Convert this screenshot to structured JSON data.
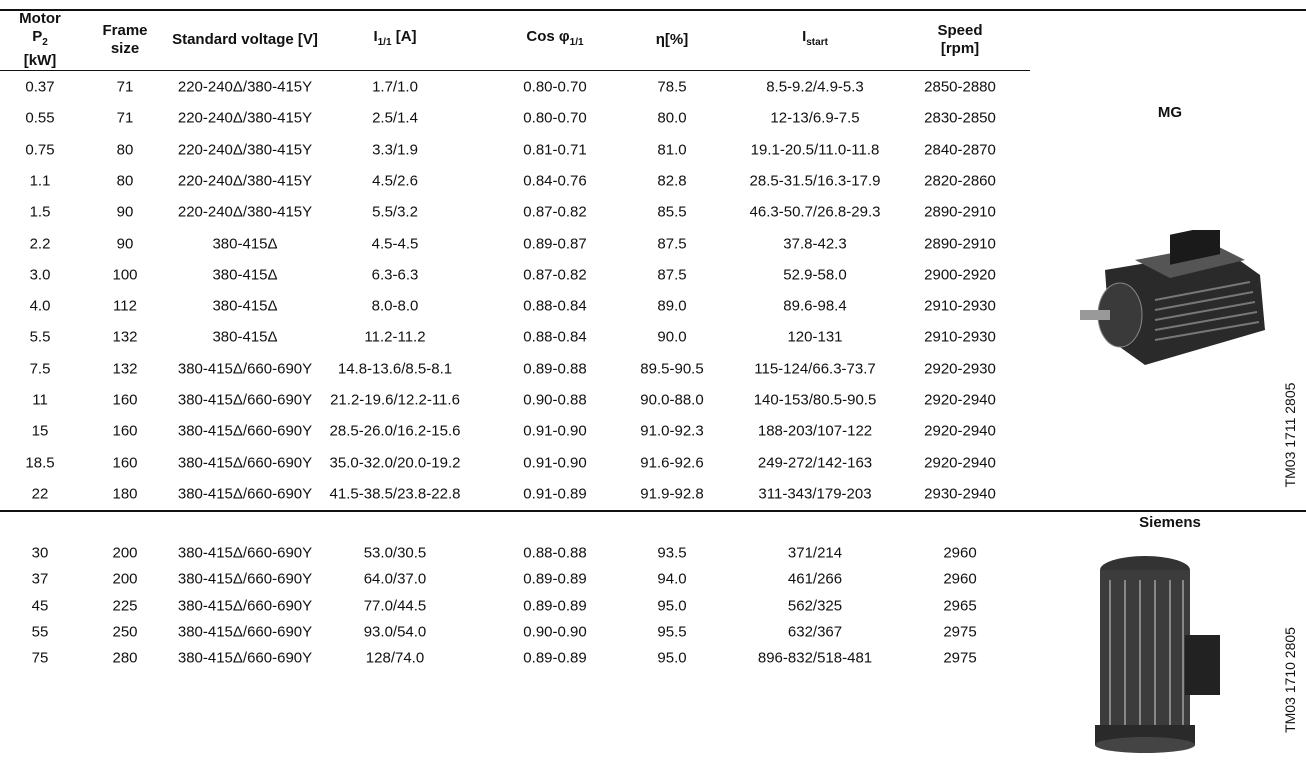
{
  "table": {
    "headers": [
      {
        "text": "Motor",
        "symbol": "P",
        "sub": "2",
        "unit": "[kW]"
      },
      {
        "text": "Frame size"
      },
      {
        "text": "Standard voltage [V]"
      },
      {
        "symbol": "I",
        "sub": "1/1",
        "unit": "[A]"
      },
      {
        "symbol": "Cos φ",
        "sub": "1/1"
      },
      {
        "text": "η[%]"
      },
      {
        "symbol": "I",
        "sub": "start"
      },
      {
        "text": "Speed [rpm]"
      }
    ],
    "mg_rows": [
      [
        "0.37",
        "71",
        "220-240Δ/380-415Y",
        "1.7/1.0",
        "0.80-0.70",
        "78.5",
        "8.5-9.2/4.9-5.3",
        "2850-2880"
      ],
      [
        "0.55",
        "71",
        "220-240Δ/380-415Y",
        "2.5/1.4",
        "0.80-0.70",
        "80.0",
        "12-13/6.9-7.5",
        "2830-2850"
      ],
      [
        "0.75",
        "80",
        "220-240Δ/380-415Y",
        "3.3/1.9",
        "0.81-0.71",
        "81.0",
        "19.1-20.5/11.0-11.8",
        "2840-2870"
      ],
      [
        "1.1",
        "80",
        "220-240Δ/380-415Y",
        "4.5/2.6",
        "0.84-0.76",
        "82.8",
        "28.5-31.5/16.3-17.9",
        "2820-2860"
      ],
      [
        "1.5",
        "90",
        "220-240Δ/380-415Y",
        "5.5/3.2",
        "0.87-0.82",
        "85.5",
        "46.3-50.7/26.8-29.3",
        "2890-2910"
      ],
      [
        "2.2",
        "90",
        "380-415Δ",
        "4.5-4.5",
        "0.89-0.87",
        "87.5",
        "37.8-42.3",
        "2890-2910"
      ],
      [
        "3.0",
        "100",
        "380-415Δ",
        "6.3-6.3",
        "0.87-0.82",
        "87.5",
        "52.9-58.0",
        "2900-2920"
      ],
      [
        "4.0",
        "112",
        "380-415Δ",
        "8.0-8.0",
        "0.88-0.84",
        "89.0",
        "89.6-98.4",
        "2910-2930"
      ],
      [
        "5.5",
        "132",
        "380-415Δ",
        "11.2-11.2",
        "0.88-0.84",
        "90.0",
        "120-131",
        "2910-2930"
      ],
      [
        "7.5",
        "132",
        "380-415Δ/660-690Y",
        "14.8-13.6/8.5-8.1",
        "0.89-0.88",
        "89.5-90.5",
        "115-124/66.3-73.7",
        "2920-2930"
      ],
      [
        "11",
        "160",
        "380-415Δ/660-690Y",
        "21.2-19.6/12.2-11.6",
        "0.90-0.88",
        "90.0-88.0",
        "140-153/80.5-90.5",
        "2920-2940"
      ],
      [
        "15",
        "160",
        "380-415Δ/660-690Y",
        "28.5-26.0/16.2-15.6",
        "0.91-0.90",
        "91.0-92.3",
        "188-203/107-122",
        "2920-2940"
      ],
      [
        "18.5",
        "160",
        "380-415Δ/660-690Y",
        "35.0-32.0/20.0-19.2",
        "0.91-0.90",
        "91.6-92.6",
        "249-272/142-163",
        "2920-2940"
      ],
      [
        "22",
        "180",
        "380-415Δ/660-690Y",
        "41.5-38.5/23.8-22.8",
        "0.91-0.89",
        "91.9-92.8",
        "311-343/179-203",
        "2930-2940"
      ]
    ],
    "siemens_rows": [
      [
        "30",
        "200",
        "380-415Δ/660-690Y",
        "53.0/30.5",
        "0.88-0.88",
        "93.5",
        "371/214",
        "2960"
      ],
      [
        "37",
        "200",
        "380-415Δ/660-690Y",
        "64.0/37.0",
        "0.89-0.89",
        "94.0",
        "461/266",
        "2960"
      ],
      [
        "45",
        "225",
        "380-415Δ/660-690Y",
        "77.0/44.5",
        "0.89-0.89",
        "95.0",
        "562/325",
        "2965"
      ],
      [
        "55",
        "250",
        "380-415Δ/660-690Y",
        "93.0/54.0",
        "0.90-0.90",
        "95.5",
        "632/367",
        "2975"
      ],
      [
        "75",
        "280",
        "380-415Δ/660-690Y",
        "128/74.0",
        "0.89-0.89",
        "95.0",
        "896-832/518-481",
        "2975"
      ]
    ]
  },
  "brands": {
    "mg": {
      "label": "MG",
      "code": "TM03 1711 2805"
    },
    "siemens": {
      "label": "Siemens",
      "code": "TM03 1710 2805"
    }
  }
}
